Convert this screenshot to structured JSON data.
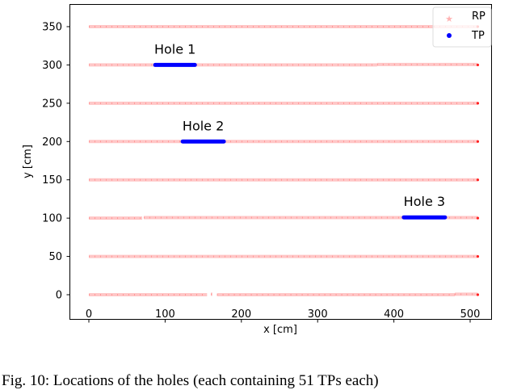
{
  "chart_data": {
    "type": "scatter",
    "xlabel": "x [cm]",
    "ylabel": "y [cm]",
    "xlim": [
      -25,
      528
    ],
    "ylim": [
      -32,
      380
    ],
    "xticks": [
      0,
      100,
      200,
      300,
      400,
      500
    ],
    "yticks": [
      0,
      50,
      100,
      150,
      200,
      250,
      300,
      350
    ],
    "grid": false,
    "legend": {
      "placement": "top-right",
      "entries": [
        {
          "label": "RP",
          "marker": "star",
          "color": "#ff8080"
        },
        {
          "label": "TP",
          "marker": "circle",
          "color": "#0000ff"
        }
      ]
    },
    "series": [
      {
        "name": "RP",
        "color": "#ff8080",
        "rows": [
          {
            "y": 0,
            "segments": [
              [
                0,
                155
              ],
              [
                160,
                162
              ],
              [
                168,
                480
              ],
              [
                480,
                510
              ]
            ]
          },
          {
            "y": 50,
            "segments": [
              [
                0,
                510
              ]
            ]
          },
          {
            "y": 100,
            "segments": [
              [
                0,
                70
              ],
              [
                72,
                510
              ]
            ]
          },
          {
            "y": 150,
            "segments": [
              [
                0,
                510
              ]
            ]
          },
          {
            "y": 200,
            "segments": [
              [
                0,
                510
              ]
            ]
          },
          {
            "y": 250,
            "segments": [
              [
                0,
                510
              ]
            ]
          },
          {
            "y": 300,
            "segments": [
              [
                0,
                378
              ],
              [
                378,
                510
              ]
            ]
          },
          {
            "y": 350,
            "segments": [
              [
                0,
                510
              ]
            ]
          }
        ]
      },
      {
        "name": "TP",
        "color": "#0000ff",
        "holes": [
          {
            "label": "Hole 1",
            "y": 300,
            "x_range": [
              87,
              139
            ]
          },
          {
            "label": "Hole 2",
            "y": 200,
            "x_range": [
              123,
              177
            ]
          },
          {
            "label": "Hole 3",
            "y": 101,
            "x_range": [
              413,
              467
            ]
          }
        ]
      }
    ]
  },
  "caption": "Fig. 10: Locations of the holes (each containing 51 TPs each)"
}
